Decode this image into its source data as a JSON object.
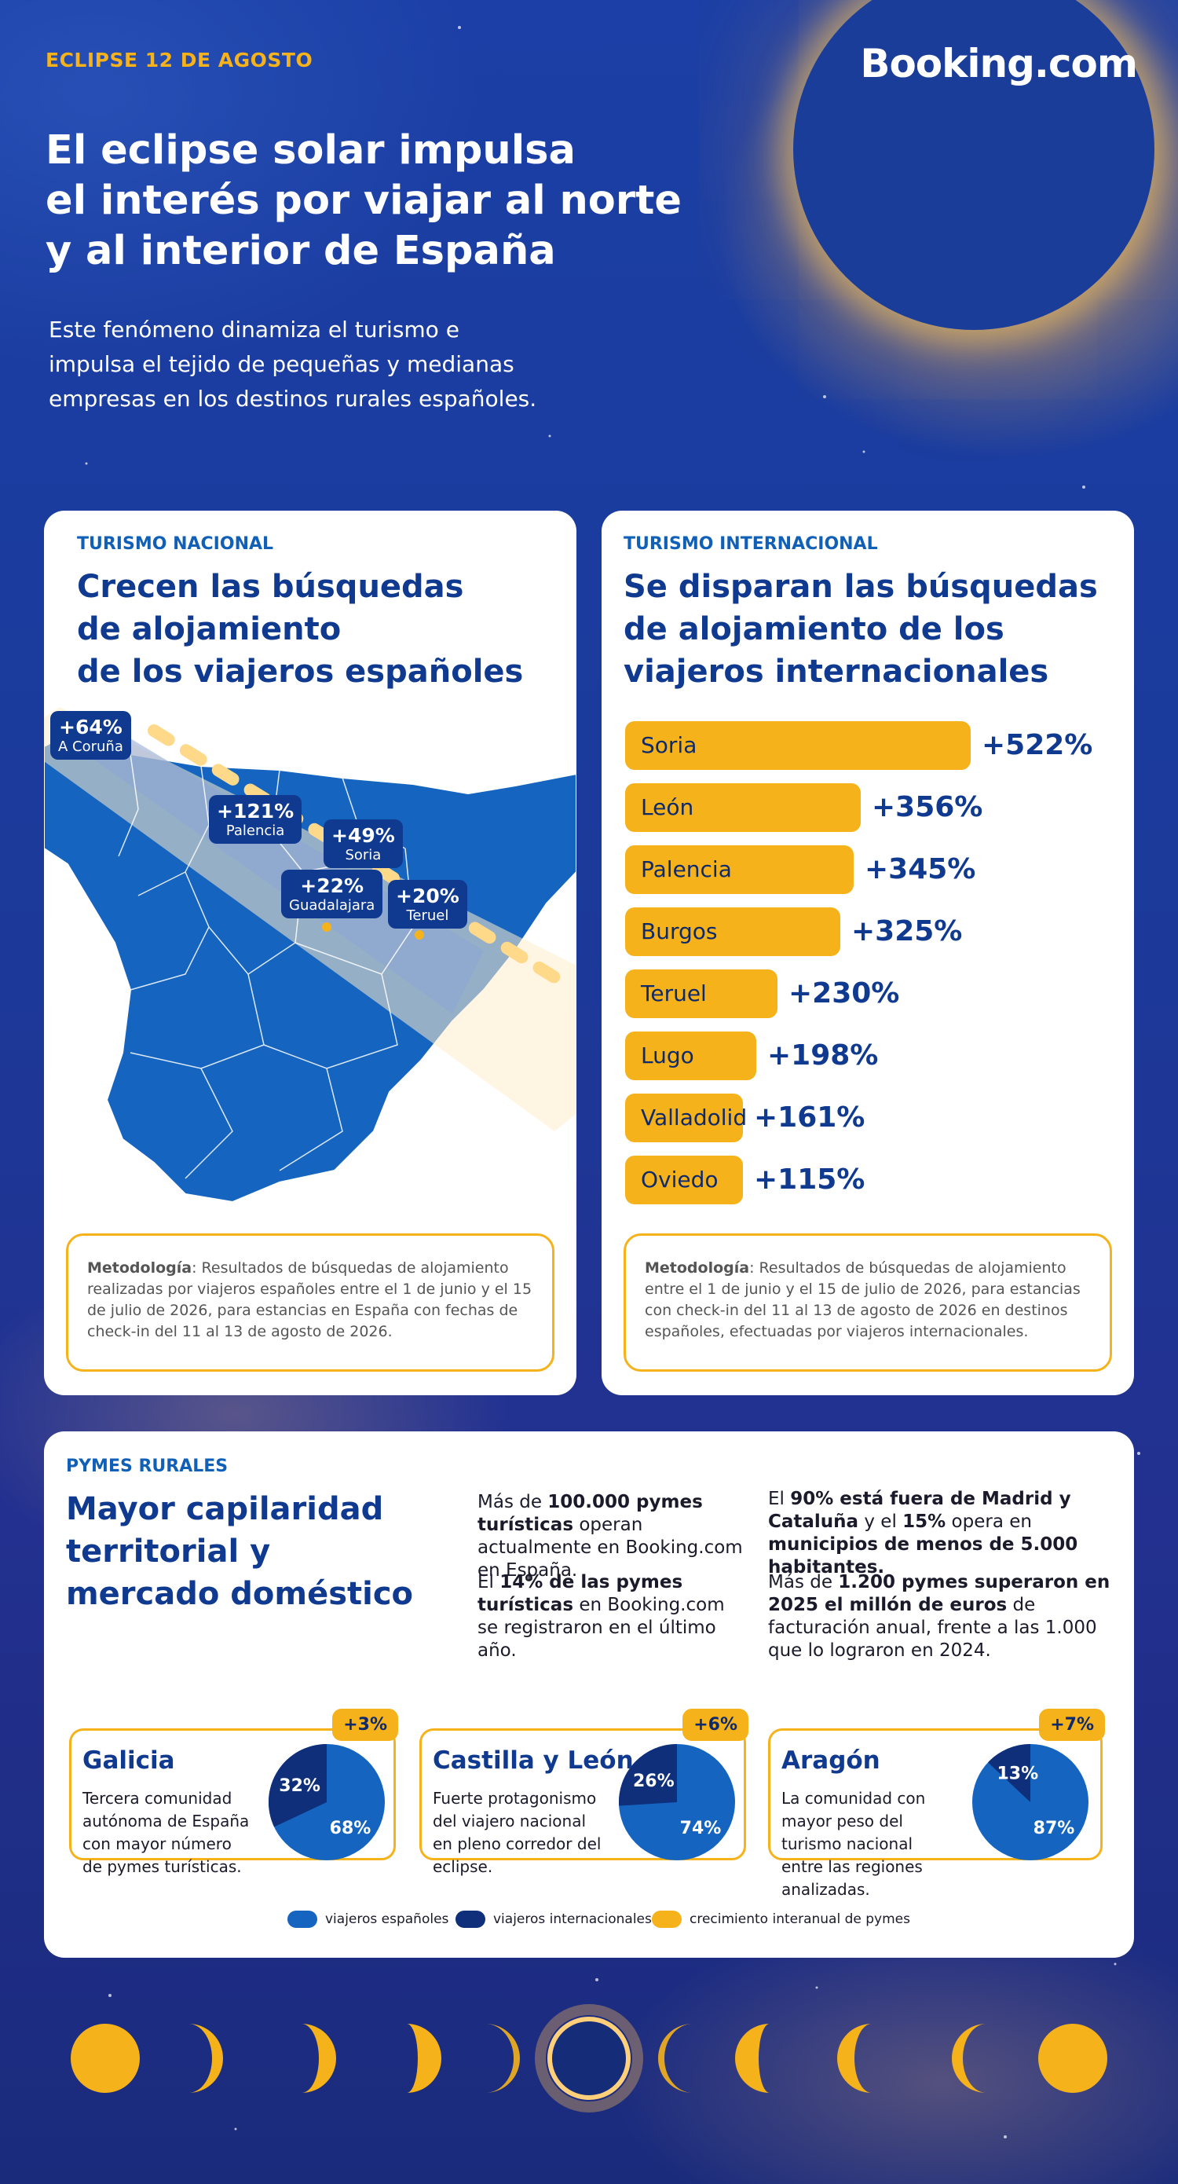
{
  "header": {
    "tag": "ECLIPSE 12 DE AGOSTO",
    "logo": "Booking.com",
    "title_lines": [
      "El eclipse solar impulsa",
      "el interés por viajar al norte",
      "y al interior de España"
    ],
    "subtitle_lines": [
      "Este fenómeno dinamiza el turismo e",
      "impulsa el tejido de pequeñas y medianas",
      "empresas en los destinos rurales españoles."
    ]
  },
  "nacional": {
    "tag": "TURISMO NACIONAL",
    "title_lines": [
      "Crecen las búsquedas",
      "de alojamiento",
      "de los viajeros españoles"
    ],
    "cities": [
      {
        "pct": "+64%",
        "city": "A Coruña"
      },
      {
        "pct": "+121%",
        "city": "Palencia"
      },
      {
        "pct": "+49%",
        "city": "Soria"
      },
      {
        "pct": "+22%",
        "city": "Guadalajara"
      },
      {
        "pct": "+20%",
        "city": "Teruel"
      }
    ],
    "method_label": "Metodología",
    "method_text": ": Resultados de búsquedas de alojamiento realizadas por viajeros españoles entre el 1 de junio y el 15 de julio de 2026, para estancias en España con fechas de check-in del 11 al 13 de agosto de 2026."
  },
  "internacional": {
    "tag": "TURISMO INTERNACIONAL",
    "title_lines": [
      "Se disparan las búsquedas",
      "de alojamiento de los",
      "viajeros internacionales"
    ],
    "method_label": "Metodología",
    "method_text": ": Resultados de búsquedas de alojamiento entre el 1 de junio y el 15 de julio de 2026, para estancias con check-in del 11 al 13 de agosto de 2026 en destinos españoles, efectuadas por viajeros internacionales."
  },
  "chart_data": {
    "type": "bar",
    "categories": [
      "Soria",
      "León",
      "Palencia",
      "Burgos",
      "Teruel",
      "Lugo",
      "Valladolid",
      "Oviedo"
    ],
    "values": [
      522,
      356,
      345,
      325,
      230,
      198,
      161,
      115
    ],
    "value_labels": [
      "+522%",
      "+356%",
      "+345%",
      "+325%",
      "+230%",
      "+198%",
      "+161%",
      "+115%"
    ],
    "title": "Se disparan las búsquedas de alojamiento de los viajeros internacionales",
    "orientation": "horizontal",
    "colors": {
      "bar": "#f5b21b",
      "value": "#0f3a8f"
    }
  },
  "pymes": {
    "tag": "PYMES RURALES",
    "title_lines": [
      "Mayor capilaridad",
      "territorial y",
      "mercado doméstico"
    ],
    "col1": [
      {
        "pre": "Más de ",
        "bold": "100.000 pymes turísticas",
        "post": " operan actualmente en Booking.com en España."
      },
      {
        "pre": "El ",
        "bold": "14% de las pymes turísticas",
        "post": " en Booking.com se registraron en el último año."
      }
    ],
    "col2": [
      {
        "pre": "El ",
        "bold": "90% está fuera de Madrid y Cataluña",
        "mid": " y el ",
        "bold2": "15%",
        "mid2": " opera en ",
        "bold3": "municipios de menos de 5.000 habitantes."
      },
      {
        "pre": "Más de ",
        "bold": "1.200 pymes superaron en 2025 el millón de euros",
        "post": " de facturación anual, frente a las 1.000 que lo lograron en 2024."
      }
    ],
    "regions": [
      {
        "name": "Galicia",
        "badge": "+3%",
        "desc": "Tercera comunidad autónoma de España con mayor número de pymes turísticas.",
        "spanish": 68,
        "international": 32,
        "spanish_label": "68%",
        "international_label": "32%"
      },
      {
        "name": "Castilla y León",
        "badge": "+6%",
        "desc": "Fuerte protagonismo del viajero nacional en pleno corredor del eclipse.",
        "spanish": 74,
        "international": 26,
        "spanish_label": "74%",
        "international_label": "26%"
      },
      {
        "name": "Aragón",
        "badge": "+7%",
        "desc": "La comunidad con mayor peso del turismo nacional entre las regiones analizadas.",
        "spanish": 87,
        "international": 13,
        "spanish_label": "87%",
        "international_label": "13%"
      }
    ],
    "legend": [
      "viajeros españoles",
      "viajeros internacionales",
      "crecimiento interanual de pymes"
    ],
    "colors": {
      "spanish": "#1565c0",
      "international": "#0f2f7a",
      "growth": "#f5b21b"
    }
  }
}
